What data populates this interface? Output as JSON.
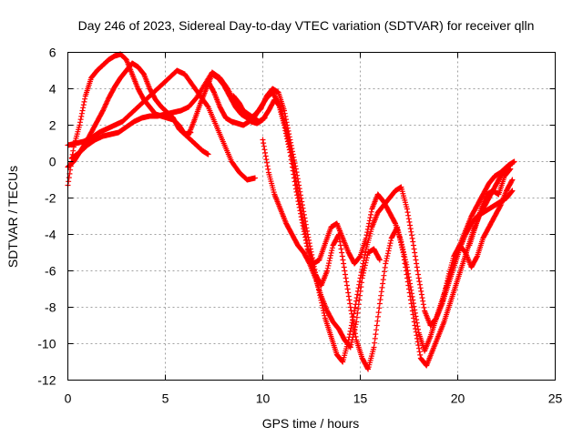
{
  "chart_data": {
    "type": "scatter",
    "title": "Day 246 of 2023, Sidereal Day-to-day VTEC variation (SDTVAR) for receiver qlln",
    "xlabel": "GPS time / hours",
    "ylabel": "SDTVAR / TECUs",
    "xlim": [
      0,
      25
    ],
    "ylim": [
      -12,
      6
    ],
    "xticks": [
      0,
      5,
      10,
      15,
      20,
      25
    ],
    "yticks": [
      -12,
      -10,
      -8,
      -6,
      -4,
      -2,
      0,
      2,
      4,
      6
    ],
    "grid": true,
    "marker": "plus",
    "color": "#ff0000",
    "series": [
      {
        "x": [
          0.0,
          0.3,
          0.6,
          0.9,
          1.2,
          1.5,
          1.8,
          2.1,
          2.4,
          2.7,
          3.0,
          3.3,
          3.6,
          3.9,
          4.2,
          4.5,
          4.8,
          5.1,
          5.4,
          5.7,
          6.0,
          6.3,
          6.6,
          6.9,
          7.2
        ],
        "y": [
          -1.3,
          0.8,
          2.0,
          3.6,
          4.6,
          5.0,
          5.3,
          5.6,
          5.8,
          5.9,
          5.6,
          4.8,
          4.0,
          3.4,
          3.0,
          2.6,
          2.5,
          2.4,
          2.3,
          2.0,
          1.5,
          1.2,
          0.9,
          0.6,
          0.4
        ]
      },
      {
        "x": [
          0.0,
          0.3,
          0.6,
          0.9,
          1.2,
          1.5,
          1.8,
          2.1,
          2.4,
          2.7,
          3.0,
          3.3,
          3.6,
          3.9,
          4.2,
          4.5,
          4.8,
          5.1,
          5.4,
          5.7,
          6.0,
          6.3
        ],
        "y": [
          -0.3,
          0.0,
          0.5,
          1.0,
          1.6,
          2.2,
          2.8,
          3.5,
          4.1,
          4.6,
          5.0,
          5.4,
          5.2,
          4.8,
          4.0,
          3.4,
          3.0,
          2.7,
          2.4,
          1.8,
          1.5,
          1.6
        ]
      },
      {
        "x": [
          0.0,
          0.4,
          0.8,
          1.2,
          1.6,
          2.0,
          2.4,
          2.8,
          3.2,
          3.6,
          4.0,
          4.4,
          4.8,
          5.2,
          5.6,
          6.0,
          6.4,
          6.8,
          7.2,
          7.6,
          8.0,
          8.4,
          8.8,
          9.2,
          9.6
        ],
        "y": [
          0.9,
          1.0,
          1.1,
          1.3,
          1.6,
          1.8,
          2.0,
          2.2,
          2.6,
          3.0,
          3.4,
          3.8,
          4.2,
          4.6,
          5.0,
          4.8,
          4.2,
          3.6,
          3.0,
          2.0,
          1.0,
          0.0,
          -0.6,
          -1.0,
          -0.9
        ]
      },
      {
        "x": [
          0.2,
          0.6,
          1.0,
          1.4,
          1.8,
          2.2,
          2.6,
          3.0,
          3.4,
          3.8,
          4.2,
          4.6,
          5.0,
          5.4,
          5.8,
          6.2,
          6.6,
          7.0,
          7.4,
          7.8,
          8.2,
          8.6,
          9.0,
          9.4,
          9.8
        ],
        "y": [
          0.2,
          0.5,
          0.9,
          1.2,
          1.4,
          1.5,
          1.6,
          1.9,
          2.2,
          2.4,
          2.5,
          2.5,
          2.6,
          2.7,
          2.8,
          3.0,
          3.5,
          4.2,
          4.9,
          4.6,
          4.0,
          3.2,
          2.8,
          2.5,
          2.2
        ]
      },
      {
        "x": [
          6.2,
          6.5,
          6.8,
          7.1,
          7.4,
          7.7,
          8.0,
          8.3,
          8.6,
          8.9,
          9.2,
          9.5,
          9.8,
          10.1
        ],
        "y": [
          1.5,
          2.3,
          3.2,
          4.0,
          4.8,
          4.6,
          4.2,
          3.6,
          3.0,
          2.6,
          2.4,
          2.3,
          2.2,
          2.4
        ]
      },
      {
        "x": [
          7.2,
          7.5,
          7.8,
          8.1,
          8.4,
          8.7,
          9.0,
          9.3,
          9.6,
          9.9,
          10.2,
          10.5,
          10.8,
          11.1,
          11.4,
          11.7,
          12.0,
          12.3,
          12.6,
          12.9,
          13.2,
          13.5,
          13.8,
          14.1,
          14.4,
          14.7,
          15.0,
          15.3,
          15.6,
          15.9,
          16.2,
          16.5,
          16.8,
          17.1,
          17.4,
          17.7,
          18.0,
          18.3,
          18.6,
          18.9,
          19.2,
          19.5,
          19.8,
          20.1,
          20.4,
          20.7,
          21.0,
          21.3,
          21.6,
          21.9,
          22.2,
          22.5,
          22.8
        ],
        "y": [
          4.4,
          3.8,
          3.0,
          2.4,
          2.2,
          2.1,
          2.0,
          2.2,
          2.5,
          3.0,
          3.5,
          3.8,
          3.2,
          2.0,
          0.5,
          -1.5,
          -3.2,
          -4.8,
          -5.6,
          -5.4,
          -4.5,
          -3.6,
          -3.4,
          -4.2,
          -5.0,
          -5.6,
          -5.2,
          -4.2,
          -2.6,
          -1.8,
          -2.2,
          -2.8,
          -3.4,
          -4.4,
          -5.8,
          -7.6,
          -9.4,
          -10.4,
          -9.6,
          -8.6,
          -7.6,
          -6.6,
          -5.6,
          -4.6,
          -3.8,
          -3.0,
          -2.4,
          -1.8,
          -1.2,
          -0.8,
          -0.6,
          -0.3,
          -0.1
        ]
      },
      {
        "x": [
          8.5,
          8.8,
          9.1,
          9.4,
          9.7,
          10.0,
          10.3,
          10.6,
          10.9,
          11.2,
          11.5,
          11.8,
          12.1,
          12.4,
          12.7,
          13.0,
          13.3,
          13.6,
          13.9,
          14.2,
          14.5,
          14.8,
          15.1,
          15.4,
          15.7,
          16.0,
          16.3,
          16.6,
          16.9,
          17.2,
          17.5,
          17.8,
          18.1,
          18.4,
          18.7,
          19.0,
          19.3,
          19.6,
          19.9,
          20.2,
          20.5,
          20.8,
          21.1,
          21.4,
          21.7,
          22.0,
          22.3,
          22.6,
          22.9
        ],
        "y": [
          3.6,
          3.2,
          2.6,
          2.2,
          2.1,
          2.3,
          2.8,
          3.4,
          3.0,
          1.8,
          0.2,
          -1.6,
          -3.4,
          -5.2,
          -6.2,
          -6.8,
          -6.0,
          -4.6,
          -4.0,
          -6.0,
          -8.0,
          -9.8,
          -10.8,
          -11.4,
          -10.2,
          -7.8,
          -5.6,
          -4.2,
          -3.6,
          -5.0,
          -7.0,
          -9.0,
          -10.8,
          -11.2,
          -10.4,
          -9.6,
          -8.8,
          -7.8,
          -6.8,
          -5.8,
          -4.8,
          -3.8,
          -3.0,
          -2.4,
          -1.8,
          -1.2,
          -0.6,
          -0.2,
          0.0
        ]
      },
      {
        "x": [
          9.6,
          9.9,
          10.2,
          10.5,
          10.8,
          11.1,
          11.4,
          11.7,
          12.0,
          12.3,
          12.6,
          12.9,
          13.2,
          13.5,
          13.8,
          14.1,
          14.4,
          14.7,
          15.0,
          15.3,
          15.6,
          15.9,
          16.2,
          16.5,
          16.8,
          17.1,
          17.4,
          17.7,
          18.0,
          18.3,
          18.6,
          18.9,
          19.2,
          19.5,
          19.8,
          20.1,
          20.4,
          20.7,
          21.0,
          21.3,
          21.6,
          21.9,
          22.2,
          22.5,
          22.8
        ],
        "y": [
          2.6,
          2.9,
          3.6,
          4.0,
          3.8,
          2.8,
          1.2,
          -0.4,
          -2.2,
          -4.0,
          -5.6,
          -7.2,
          -8.6,
          -9.6,
          -10.6,
          -11.0,
          -9.8,
          -8.2,
          -6.4,
          -4.8,
          -3.6,
          -2.8,
          -2.4,
          -2.0,
          -1.6,
          -1.4,
          -2.6,
          -4.4,
          -6.4,
          -8.2,
          -9.0,
          -8.6,
          -7.8,
          -6.8,
          -5.8,
          -4.8,
          -4.0,
          -3.4,
          -3.0,
          -2.8,
          -2.6,
          -2.4,
          -2.2,
          -2.0,
          -1.6
        ]
      },
      {
        "x": [
          10.0,
          10.3,
          10.6,
          10.9,
          11.2,
          11.5,
          11.8,
          12.1,
          12.4,
          12.7,
          13.0,
          13.3,
          13.6,
          13.9,
          14.2,
          14.5,
          14.8,
          15.1,
          15.4,
          15.7,
          16.0
        ],
        "y": [
          1.2,
          -0.6,
          -1.8,
          -2.6,
          -3.4,
          -4.0,
          -4.6,
          -5.0,
          -5.6,
          -6.4,
          -7.4,
          -8.2,
          -8.8,
          -9.2,
          -9.8,
          -10.2,
          -8.8,
          -6.4,
          -5.0,
          -4.8,
          -5.4
        ]
      },
      {
        "x": [
          19.2,
          19.5,
          19.8,
          20.1,
          20.4,
          20.7,
          21.0,
          21.3,
          21.6,
          21.9,
          22.2,
          22.5,
          22.8
        ],
        "y": [
          -7.8,
          -6.4,
          -5.2,
          -4.6,
          -5.0,
          -5.8,
          -5.2,
          -4.2,
          -3.6,
          -3.0,
          -2.4,
          -1.6,
          -1.0
        ]
      },
      {
        "x": [
          20.6,
          20.9,
          21.2,
          21.5,
          21.8,
          22.1,
          22.4,
          22.7
        ],
        "y": [
          -4.6,
          -3.6,
          -2.6,
          -1.8,
          -1.6,
          -1.8,
          -0.8,
          -0.4
        ]
      }
    ]
  }
}
